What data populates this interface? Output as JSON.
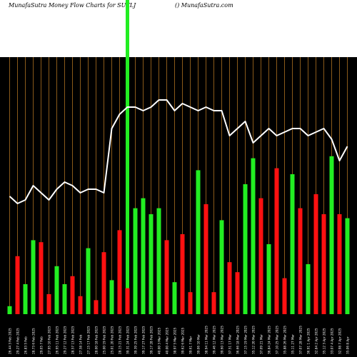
{
  "header": {
    "title_left": "MunafaSutra  Money Flow  Charts for SUTLJ",
    "title_right": "() MunafaSutra.com"
  },
  "colors": {
    "background": "#000000",
    "up_bar": "#22ee22",
    "down_bar": "#ff1111",
    "line": "#ffffff",
    "gridline": "#8a5a1a",
    "highlight": "#22ee22",
    "label": "#ffffff"
  },
  "chart_data": {
    "type": "bar",
    "title": "Money Flow",
    "ylim": [
      0,
      100
    ],
    "line_ylim": [
      0,
      100
    ],
    "highlight_index": 15,
    "categories": [
      "26.44 3 Feb 2025",
      "29.27 4 Feb 2025",
      "26.83 5 Feb",
      "28.73 6 Feb 2025",
      "29.05 7 Feb",
      "27.95 10 Feb 2025",
      "26.95 11 Feb 2025",
      "29.27 12 Feb 2025",
      "28.57 13 Feb 2025",
      "27.58 14 Feb",
      "27.15 17 Feb 2025",
      "28.00 18 Feb 2025",
      "25.00 19 Feb 2025",
      "25.01 20 Feb 2025",
      "28.15 21 Feb 2025",
      "39.31 24 Feb 2025",
      "39.39 25 Feb 2025",
      "39.17 27 Feb 2025",
      "39.17 28 Feb 2025",
      "40.00 3 Mar 2025",
      "40.00 4 Mar 2025",
      "38.97 5 Mar 2025",
      "39.62 6 Mar 2025",
      "39.61 7 Mar",
      "39.06 10 Mar",
      "38.94 11 Mar 2025",
      "39.46 12 Mar 2025",
      "39.60 13 Mar 2025",
      "37.51 17 Mar",
      "36.66 18 Mar 2025",
      "37.15 19 Mar 2025",
      "35.12 20 Mar 2025",
      "37.09 21 Mar",
      "36.84 24 Mar 2025",
      "37.10 25 Mar 2025",
      "35.88 26 Mar 2025",
      "35.11 27 Mar",
      "37.07 28 Mar 2025",
      "36.91 1 Apr 2025",
      "32.84 2 Apr 2025",
      "35.12 3 Apr 2025",
      "33.07 4 Apr 2025",
      "32.98 7 Apr 2025",
      "35.06 8 Apr"
    ],
    "series": [
      {
        "type": "bar",
        "values": [
          4,
          29,
          15,
          37,
          36,
          10,
          24,
          15,
          19,
          9,
          33,
          7,
          31,
          17,
          42,
          13,
          53,
          58,
          50,
          53,
          37,
          16,
          40,
          11,
          72,
          55,
          11,
          47,
          26,
          21,
          65,
          78,
          58,
          35,
          73,
          18,
          70,
          53,
          25,
          60,
          50,
          79,
          50,
          48
        ],
        "colors": [
          "green",
          "red",
          "green",
          "green",
          "red",
          "red",
          "green",
          "green",
          "red",
          "red",
          "green",
          "red",
          "red",
          "green",
          "red",
          "red",
          "green",
          "green",
          "green",
          "green",
          "red",
          "green",
          "red",
          "red",
          "green",
          "red",
          "red",
          "green",
          "red",
          "red",
          "green",
          "green",
          "red",
          "green",
          "red",
          "red",
          "green",
          "red",
          "green",
          "red",
          "red",
          "green",
          "red",
          "green"
        ]
      },
      {
        "type": "line",
        "values": [
          74,
          72,
          73,
          77,
          75,
          73,
          76,
          78,
          77,
          75,
          76,
          76,
          75,
          93,
          97,
          99,
          99,
          98,
          99,
          101,
          101,
          98,
          100,
          99,
          98,
          99,
          98,
          98,
          91,
          93,
          95,
          89,
          91,
          93,
          91,
          92,
          93,
          93,
          91,
          92,
          93,
          90,
          84,
          88
        ]
      }
    ]
  }
}
